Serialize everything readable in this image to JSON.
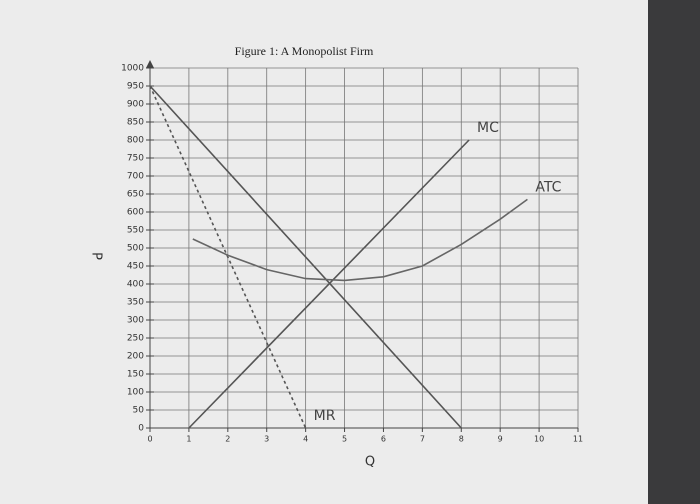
{
  "chart_data": {
    "type": "line",
    "title": "Figure 1: A Monopolist Firm",
    "x_label": "Q",
    "y_label": "P",
    "xlim": [
      0,
      11
    ],
    "ylim": [
      0,
      1000
    ],
    "xticks": [
      0,
      1,
      2,
      3,
      4,
      5,
      6,
      7,
      8,
      9,
      10,
      11
    ],
    "yticks": [
      0,
      50,
      100,
      150,
      200,
      250,
      300,
      350,
      400,
      450,
      500,
      550,
      600,
      650,
      700,
      750,
      800,
      850,
      900,
      950,
      1000
    ],
    "grid": true,
    "series": [
      {
        "color": "#555555",
        "dashed": false,
        "x": [
          0,
          8
        ],
        "values": [
          950,
          0
        ]
      },
      {
        "name": "MR",
        "color": "#555555",
        "dashed": true,
        "x": [
          0,
          4
        ],
        "values": [
          950,
          0
        ]
      },
      {
        "name": "MC",
        "color": "#555555",
        "dashed": false,
        "x": [
          1,
          8.2
        ],
        "values": [
          0,
          800
        ]
      },
      {
        "name": "ATC",
        "color": "#666666",
        "dashed": false,
        "x": [
          1.1,
          2,
          3,
          4,
          5,
          6,
          7,
          8,
          9,
          9.7
        ],
        "values": [
          525,
          480,
          440,
          415,
          410,
          420,
          450,
          510,
          580,
          635
        ]
      }
    ]
  }
}
